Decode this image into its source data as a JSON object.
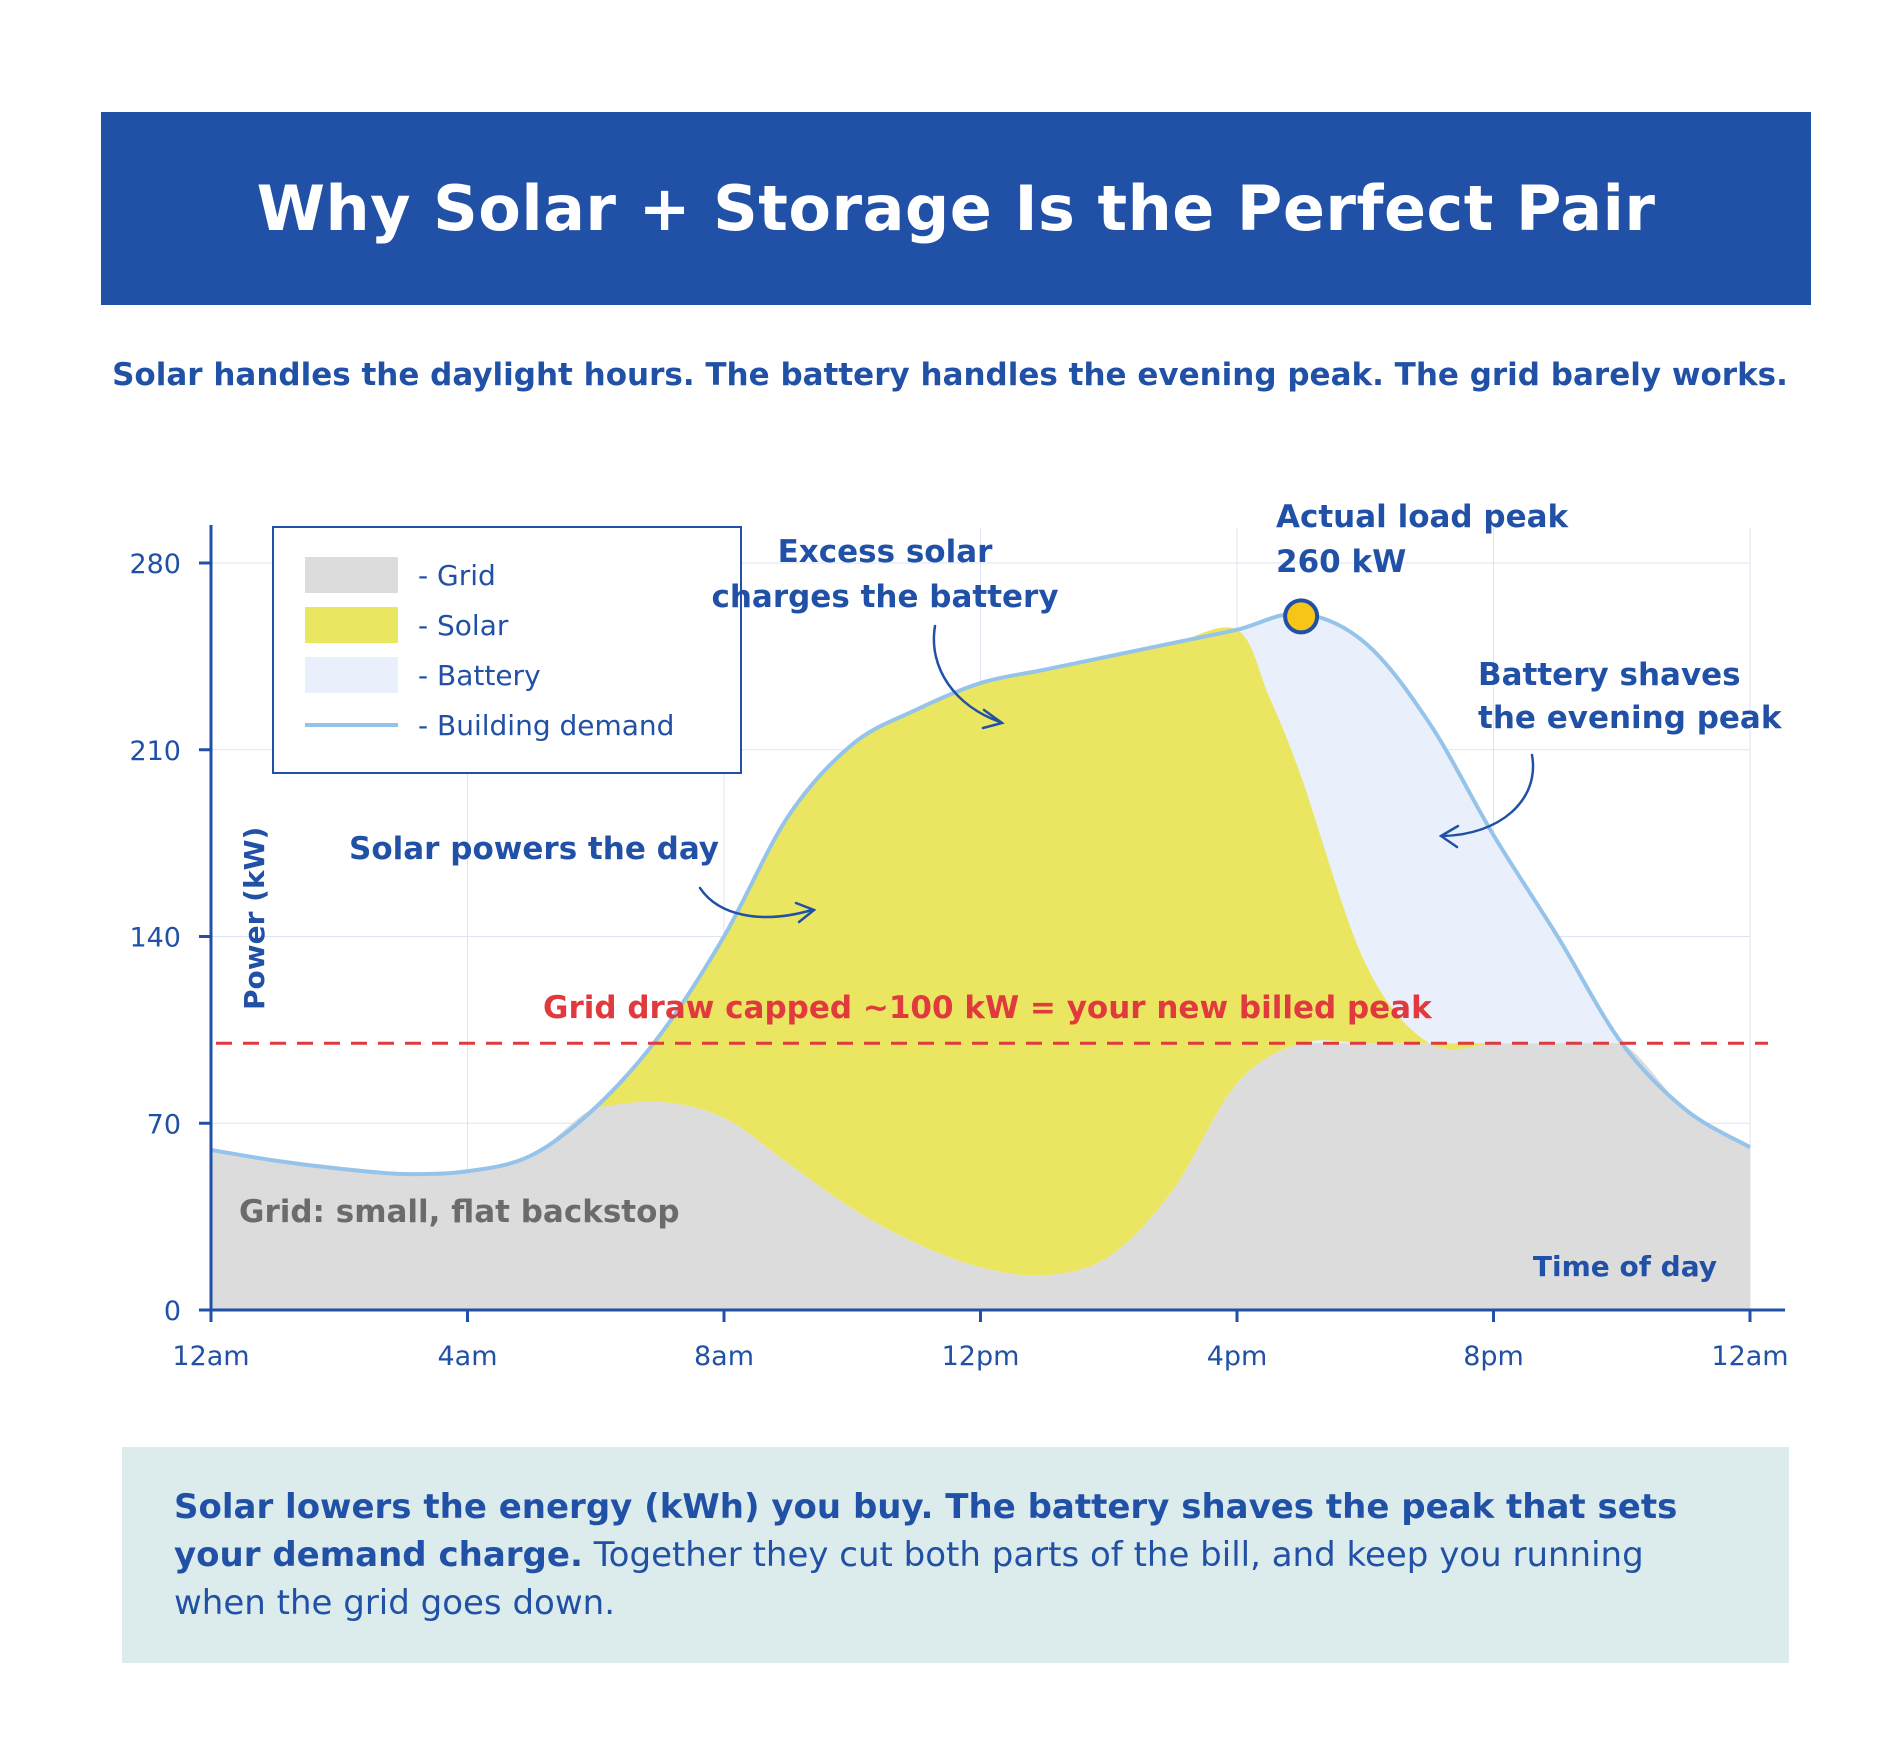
{
  "header": {
    "title": "Why Solar + Storage Is the Perfect Pair",
    "subtitle": "Solar handles the daylight hours. The battery handles the evening peak. The grid barely works."
  },
  "colors": {
    "banner": "#2151a6",
    "text_blue": "#2151a6",
    "grid_fill": "#dcdcdc",
    "solar_fill": "#ebe661",
    "battery_fill": "#eaf0fb",
    "demand_line": "#96c3ea",
    "cap_line": "#e0393e",
    "peak_marker": "#f5c518",
    "callout_bg": "#dcecec"
  },
  "chart_data": {
    "type": "area",
    "ylabel": "Power (kW)",
    "xlabel": "Time of day",
    "ylim": [
      0,
      280
    ],
    "xlim": [
      0,
      24
    ],
    "yticks": [
      0,
      70,
      140,
      210,
      280
    ],
    "xticks": [
      {
        "hour": 0,
        "label": "12am"
      },
      {
        "hour": 4,
        "label": "4am"
      },
      {
        "hour": 8,
        "label": "8am"
      },
      {
        "hour": 12,
        "label": "12pm"
      },
      {
        "hour": 16,
        "label": "4pm"
      },
      {
        "hour": 20,
        "label": "8pm"
      },
      {
        "hour": 24,
        "label": "12am"
      }
    ],
    "grid": true,
    "legend_position": "top-left",
    "legend": [
      {
        "label": "- Grid",
        "kind": "swatch",
        "color": "#dcdcdc"
      },
      {
        "label": "- Solar",
        "kind": "swatch",
        "color": "#ebe661"
      },
      {
        "label": "- Battery",
        "kind": "swatch",
        "color": "#eaf0fb"
      },
      {
        "label": "- Building demand",
        "kind": "line",
        "color": "#96c3ea"
      }
    ],
    "series": [
      {
        "name": "Building demand",
        "x": [
          0,
          1,
          2,
          3,
          4,
          5,
          6,
          7,
          8,
          9,
          10,
          11,
          12,
          13,
          14,
          15,
          16,
          17,
          18,
          19,
          20,
          21,
          22,
          23,
          24
        ],
        "values": [
          60,
          56,
          53,
          51,
          52,
          58,
          76,
          103,
          140,
          185,
          212,
          225,
          235,
          240,
          245,
          250,
          255,
          261,
          250,
          220,
          178,
          140,
          100,
          75,
          61
        ]
      },
      {
        "name": "Grid",
        "x": [
          0,
          1,
          2,
          3,
          4,
          5,
          6,
          7,
          8,
          9,
          10,
          11,
          12,
          13,
          14,
          15,
          16,
          17,
          18,
          19,
          20,
          21,
          22,
          23,
          24
        ],
        "values": [
          60,
          56,
          53,
          51,
          52,
          58,
          76,
          78,
          72,
          55,
          38,
          25,
          16,
          13,
          20,
          45,
          85,
          100,
          100,
          100,
          100,
          100,
          100,
          75,
          61
        ]
      },
      {
        "name": "Solar",
        "x": [
          6,
          7,
          8,
          9,
          10,
          11,
          12,
          13,
          14,
          15,
          16,
          16.5,
          17,
          18,
          19,
          20
        ],
        "values": [
          76,
          103,
          140,
          185,
          212,
          225,
          235,
          240,
          245,
          250,
          255,
          230,
          200,
          130,
          100,
          100
        ]
      },
      {
        "name": "Battery",
        "x": [
          16,
          17,
          18,
          19,
          20,
          21,
          22
        ],
        "values": [
          255,
          261,
          250,
          220,
          178,
          140,
          100
        ]
      }
    ],
    "grid_cap": {
      "value": 100,
      "label": "Grid draw capped ~100 kW = your new billed peak"
    },
    "peak": {
      "hour": 17,
      "value": 260,
      "label_line1": "Actual load peak",
      "label_line2": "260 kW"
    },
    "annotations": {
      "excess_line1": "Excess solar",
      "excess_line2": "charges the battery",
      "battery_line1": "Battery shaves",
      "battery_line2": "the evening peak",
      "solar_day": "Solar powers the day",
      "grid_backstop": "Grid: small, flat backstop"
    }
  },
  "callout": {
    "bold_text": "Solar lowers the energy (kWh) you buy. The battery shaves the peak that sets your demand charge.",
    "regular_text": "Together they cut both parts of the bill, and keep you running when the grid goes down."
  }
}
